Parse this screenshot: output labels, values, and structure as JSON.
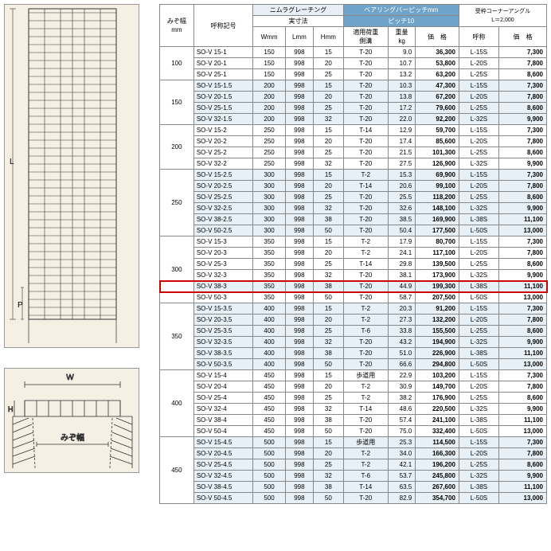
{
  "diagram_labels": {
    "L": "L",
    "P": "P",
    "W": "W",
    "H": "H",
    "mizo": "みぞ幅"
  },
  "headers": {
    "mizo": "みぞ幅\nmm",
    "model": "呼称記号",
    "nimura": "ニムラグレーチング",
    "jissun": "実寸法",
    "W": "Wmm",
    "L": "Lmm",
    "H": "Hmm",
    "bearing": "ベアリングバーピッチmm",
    "pitch": "ピッチ10",
    "load": "適用荷重\n側溝",
    "weight": "重量\nkg",
    "price": "価　格",
    "corner": "受枠コーナーアングル\nL＝2,000",
    "corner_model": "呼称",
    "corner_price": "価　格"
  },
  "groups": [
    {
      "mizo": "100",
      "band": false,
      "rows": [
        {
          "m": "SO-V 15-1",
          "w": "150",
          "l": "998",
          "h": "15",
          "ld": "T-20",
          "wt": "9.0",
          "p": "36,300",
          "cm": "L-15S",
          "cp": "7,300"
        },
        {
          "m": "SO-V 20-1",
          "w": "150",
          "l": "998",
          "h": "20",
          "ld": "T-20",
          "wt": "10.7",
          "p": "53,800",
          "cm": "L-20S",
          "cp": "7,800"
        },
        {
          "m": "SO-V 25-1",
          "w": "150",
          "l": "998",
          "h": "25",
          "ld": "T-20",
          "wt": "13.2",
          "p": "63,200",
          "cm": "L-25S",
          "cp": "8,600"
        }
      ]
    },
    {
      "mizo": "150",
      "band": true,
      "rows": [
        {
          "m": "SO-V 15-1.5",
          "w": "200",
          "l": "998",
          "h": "15",
          "ld": "T-20",
          "wt": "10.3",
          "p": "47,300",
          "cm": "L-15S",
          "cp": "7,300"
        },
        {
          "m": "SO-V 20-1.5",
          "w": "200",
          "l": "998",
          "h": "20",
          "ld": "T-20",
          "wt": "13.8",
          "p": "67,200",
          "cm": "L-20S",
          "cp": "7,800"
        },
        {
          "m": "SO-V 25-1.5",
          "w": "200",
          "l": "998",
          "h": "25",
          "ld": "T-20",
          "wt": "17.2",
          "p": "79,600",
          "cm": "L-25S",
          "cp": "8,600"
        },
        {
          "m": "SO-V 32-1.5",
          "w": "200",
          "l": "998",
          "h": "32",
          "ld": "T-20",
          "wt": "22.0",
          "p": "92,200",
          "cm": "L-32S",
          "cp": "9,900"
        }
      ]
    },
    {
      "mizo": "200",
      "band": false,
      "rows": [
        {
          "m": "SO-V 15-2",
          "w": "250",
          "l": "998",
          "h": "15",
          "ld": "T-14",
          "wt": "12.9",
          "p": "59,700",
          "cm": "L-15S",
          "cp": "7,300"
        },
        {
          "m": "SO-V 20-2",
          "w": "250",
          "l": "998",
          "h": "20",
          "ld": "T-20",
          "wt": "17.4",
          "p": "85,600",
          "cm": "L-20S",
          "cp": "7,800"
        },
        {
          "m": "SO-V 25-2",
          "w": "250",
          "l": "998",
          "h": "25",
          "ld": "T-20",
          "wt": "21.5",
          "p": "101,300",
          "cm": "L-25S",
          "cp": "8,600"
        },
        {
          "m": "SO-V 32-2",
          "w": "250",
          "l": "998",
          "h": "32",
          "ld": "T-20",
          "wt": "27.5",
          "p": "126,900",
          "cm": "L-32S",
          "cp": "9,900"
        }
      ]
    },
    {
      "mizo": "250",
      "band": true,
      "rows": [
        {
          "m": "SO-V 15-2.5",
          "w": "300",
          "l": "998",
          "h": "15",
          "ld": "T-2",
          "wt": "15.3",
          "p": "69,900",
          "cm": "L-15S",
          "cp": "7,300"
        },
        {
          "m": "SO-V 20-2.5",
          "w": "300",
          "l": "998",
          "h": "20",
          "ld": "T-14",
          "wt": "20.6",
          "p": "99,100",
          "cm": "L-20S",
          "cp": "7,800"
        },
        {
          "m": "SO-V 25-2.5",
          "w": "300",
          "l": "998",
          "h": "25",
          "ld": "T-20",
          "wt": "25.5",
          "p": "118,200",
          "cm": "L-25S",
          "cp": "8,600"
        },
        {
          "m": "SO-V 32-2.5",
          "w": "300",
          "l": "998",
          "h": "32",
          "ld": "T-20",
          "wt": "32.6",
          "p": "148,100",
          "cm": "L-32S",
          "cp": "9,900"
        },
        {
          "m": "SO-V 38-2.5",
          "w": "300",
          "l": "998",
          "h": "38",
          "ld": "T-20",
          "wt": "38.5",
          "p": "169,900",
          "cm": "L-38S",
          "cp": "11,100"
        },
        {
          "m": "SO-V 50-2.5",
          "w": "300",
          "l": "998",
          "h": "50",
          "ld": "T-20",
          "wt": "50.4",
          "p": "177,500",
          "cm": "L-50S",
          "cp": "13,000"
        }
      ]
    },
    {
      "mizo": "300",
      "band": false,
      "rows": [
        {
          "m": "SO-V 15-3",
          "w": "350",
          "l": "998",
          "h": "15",
          "ld": "T-2",
          "wt": "17.9",
          "p": "80,700",
          "cm": "L-15S",
          "cp": "7,300"
        },
        {
          "m": "SO-V 20-3",
          "w": "350",
          "l": "998",
          "h": "20",
          "ld": "T-2",
          "wt": "24.1",
          "p": "117,100",
          "cm": "L-20S",
          "cp": "7,800"
        },
        {
          "m": "SO-V 25-3",
          "w": "350",
          "l": "998",
          "h": "25",
          "ld": "T-14",
          "wt": "29.8",
          "p": "139,500",
          "cm": "L-25S",
          "cp": "8,600"
        },
        {
          "m": "SO-V 32-3",
          "w": "350",
          "l": "998",
          "h": "32",
          "ld": "T-20",
          "wt": "38.1",
          "p": "173,900",
          "cm": "L-32S",
          "cp": "9,900"
        },
        {
          "m": "SO-V 38-3",
          "w": "350",
          "l": "998",
          "h": "38",
          "ld": "T-20",
          "wt": "44.9",
          "p": "199,300",
          "cm": "L-38S",
          "cp": "11,100",
          "highlight": true
        },
        {
          "m": "SO-V 50-3",
          "w": "350",
          "l": "998",
          "h": "50",
          "ld": "T-20",
          "wt": "58.7",
          "p": "207,500",
          "cm": "L-50S",
          "cp": "13,000"
        }
      ]
    },
    {
      "mizo": "350",
      "band": true,
      "rows": [
        {
          "m": "SO-V 15-3.5",
          "w": "400",
          "l": "998",
          "h": "15",
          "ld": "T-2",
          "wt": "20.3",
          "p": "91,200",
          "cm": "L-15S",
          "cp": "7,300"
        },
        {
          "m": "SO-V 20-3.5",
          "w": "400",
          "l": "998",
          "h": "20",
          "ld": "T-2",
          "wt": "27.3",
          "p": "132,200",
          "cm": "L-20S",
          "cp": "7,800"
        },
        {
          "m": "SO-V 25-3.5",
          "w": "400",
          "l": "998",
          "h": "25",
          "ld": "T-6",
          "wt": "33.8",
          "p": "155,500",
          "cm": "L-25S",
          "cp": "8,600"
        },
        {
          "m": "SO-V 32-3.5",
          "w": "400",
          "l": "998",
          "h": "32",
          "ld": "T-20",
          "wt": "43.2",
          "p": "194,900",
          "cm": "L-32S",
          "cp": "9,900"
        },
        {
          "m": "SO-V 38-3.5",
          "w": "400",
          "l": "998",
          "h": "38",
          "ld": "T-20",
          "wt": "51.0",
          "p": "226,900",
          "cm": "L-38S",
          "cp": "11,100"
        },
        {
          "m": "SO-V 50-3.5",
          "w": "400",
          "l": "998",
          "h": "50",
          "ld": "T-20",
          "wt": "66.6",
          "p": "294,800",
          "cm": "L-50S",
          "cp": "13,000"
        }
      ]
    },
    {
      "mizo": "400",
      "band": false,
      "rows": [
        {
          "m": "SO-V 15-4",
          "w": "450",
          "l": "998",
          "h": "15",
          "ld": "歩道用",
          "wt": "22.9",
          "p": "103,200",
          "cm": "L-15S",
          "cp": "7,300"
        },
        {
          "m": "SO-V 20-4",
          "w": "450",
          "l": "998",
          "h": "20",
          "ld": "T-2",
          "wt": "30.9",
          "p": "149,700",
          "cm": "L-20S",
          "cp": "7,800"
        },
        {
          "m": "SO-V 25-4",
          "w": "450",
          "l": "998",
          "h": "25",
          "ld": "T-2",
          "wt": "38.2",
          "p": "176,900",
          "cm": "L-25S",
          "cp": "8,600"
        },
        {
          "m": "SO-V 32-4",
          "w": "450",
          "l": "998",
          "h": "32",
          "ld": "T-14",
          "wt": "48.6",
          "p": "220,500",
          "cm": "L-32S",
          "cp": "9,900"
        },
        {
          "m": "SO-V 38-4",
          "w": "450",
          "l": "998",
          "h": "38",
          "ld": "T-20",
          "wt": "57.4",
          "p": "241,100",
          "cm": "L-38S",
          "cp": "11,100"
        },
        {
          "m": "SO-V 50-4",
          "w": "450",
          "l": "998",
          "h": "50",
          "ld": "T-20",
          "wt": "75.0",
          "p": "332,400",
          "cm": "L-50S",
          "cp": "13,000"
        }
      ]
    },
    {
      "mizo": "450",
      "band": true,
      "rows": [
        {
          "m": "SO-V 15-4.5",
          "w": "500",
          "l": "998",
          "h": "15",
          "ld": "歩道用",
          "wt": "25.3",
          "p": "114,500",
          "cm": "L-15S",
          "cp": "7,300"
        },
        {
          "m": "SO-V 20-4.5",
          "w": "500",
          "l": "998",
          "h": "20",
          "ld": "T-2",
          "wt": "34.0",
          "p": "166,300",
          "cm": "L-20S",
          "cp": "7,800"
        },
        {
          "m": "SO-V 25-4.5",
          "w": "500",
          "l": "998",
          "h": "25",
          "ld": "T-2",
          "wt": "42.1",
          "p": "196,200",
          "cm": "L-25S",
          "cp": "8,600"
        },
        {
          "m": "SO-V 32-4.5",
          "w": "500",
          "l": "998",
          "h": "32",
          "ld": "T-6",
          "wt": "53.7",
          "p": "245,800",
          "cm": "L-32S",
          "cp": "9,900"
        },
        {
          "m": "SO-V 38-4.5",
          "w": "500",
          "l": "998",
          "h": "38",
          "ld": "T-14",
          "wt": "63.5",
          "p": "267,600",
          "cm": "L-38S",
          "cp": "11,100"
        },
        {
          "m": "SO-V 50-4.5",
          "w": "500",
          "l": "998",
          "h": "50",
          "ld": "T-20",
          "wt": "82.9",
          "p": "354,700",
          "cm": "L-50S",
          "cp": "13,000"
        }
      ]
    }
  ]
}
